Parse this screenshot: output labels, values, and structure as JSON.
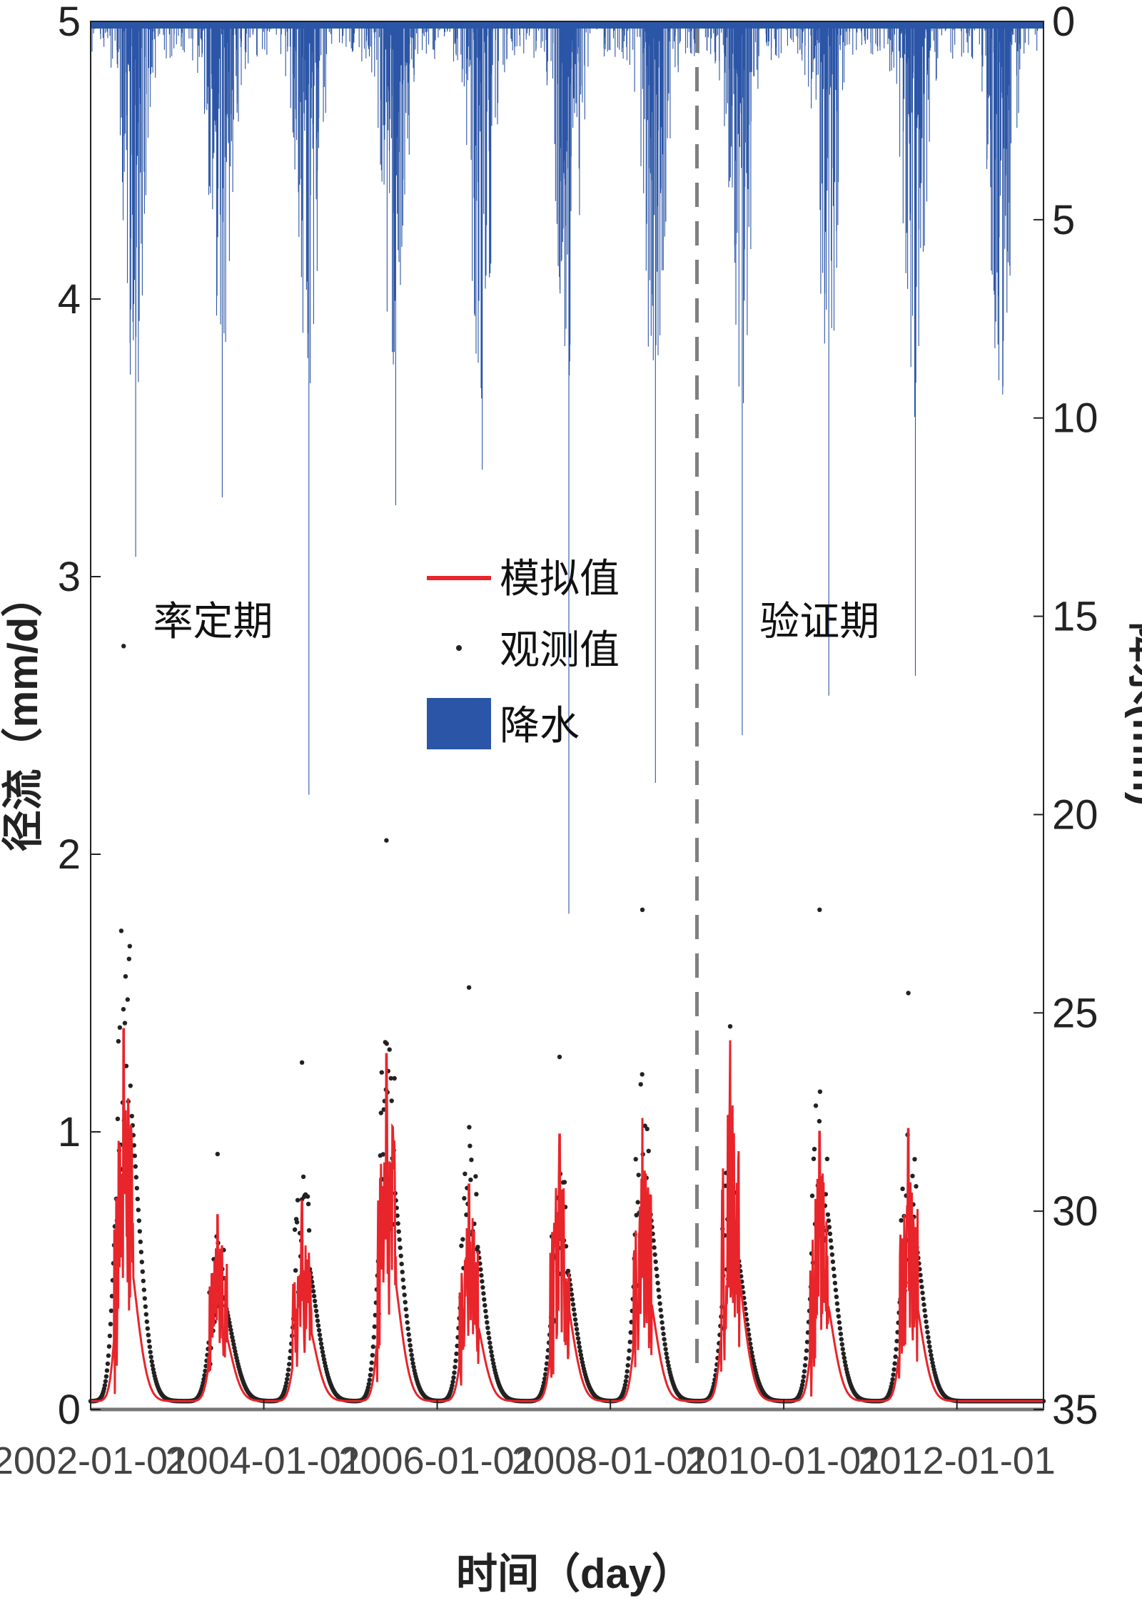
{
  "chart_data": {
    "type": "line",
    "xlabel": "时间（day）",
    "ylabel_left": "径流（mm/d）",
    "ylabel_right": "降水(mm)",
    "xlim": [
      "2002-01-01",
      "2012-12-31"
    ],
    "xticks": [
      "2002-01-01",
      "2004-01-01",
      "2006-01-01",
      "2008-01-01",
      "2010-01-01",
      "2012-01-01"
    ],
    "ylim_left": [
      0,
      5
    ],
    "yticks_left": [
      "0",
      "1",
      "2",
      "3",
      "4",
      "5"
    ],
    "ylim_right": [
      0,
      35
    ],
    "yticks_right": [
      "0",
      "5",
      "10",
      "15",
      "20",
      "25",
      "30",
      "35"
    ],
    "right_axis_inverted": true,
    "grid": false,
    "divider_date": "2008-12-31",
    "period_labels": {
      "calibration": "率定期",
      "validation": "验证期"
    },
    "legend": {
      "position": "center",
      "entries": [
        "模拟值",
        "观测值",
        "降水"
      ]
    },
    "colors": {
      "simulated": "#e8252b",
      "observed": "#222222",
      "precip": "#2b55a6",
      "divider": "#7f7f7f"
    },
    "annual_peaks": [
      {
        "date": "2002-05-20",
        "observed_max": 2.75,
        "simulated_max": 1.37
      },
      {
        "date": "2003-06-20",
        "observed_max": 0.92,
        "simulated_max": 0.7
      },
      {
        "date": "2004-06-10",
        "observed_max": 1.25,
        "simulated_max": 0.75
      },
      {
        "date": "2005-06-01",
        "observed_max": 2.05,
        "simulated_max": 1.28
      },
      {
        "date": "2006-05-15",
        "observed_max": 1.52,
        "simulated_max": 0.81
      },
      {
        "date": "2007-06-01",
        "observed_max": 1.27,
        "simulated_max": 0.99
      },
      {
        "date": "2008-05-15",
        "observed_max": 1.8,
        "simulated_max": 1.05
      },
      {
        "date": "2009-05-20",
        "observed_max": 1.38,
        "simulated_max": 1.33
      },
      {
        "date": "2010-06-01",
        "observed_max": 1.8,
        "simulated_max": 1.0
      },
      {
        "date": "2011-06-10",
        "observed_max": 1.5,
        "simulated_max": 1.01
      }
    ],
    "precip_annual_max": [
      {
        "year": 2002,
        "max_mm": 13.5
      },
      {
        "year": 2003,
        "max_mm": 12.0
      },
      {
        "year": 2004,
        "max_mm": 19.5
      },
      {
        "year": 2005,
        "max_mm": 12.2
      },
      {
        "year": 2006,
        "max_mm": 11.3
      },
      {
        "year": 2007,
        "max_mm": 22.5
      },
      {
        "year": 2008,
        "max_mm": 19.2
      },
      {
        "year": 2009,
        "max_mm": 18.0
      },
      {
        "year": 2010,
        "max_mm": 17.0
      },
      {
        "year": 2011,
        "max_mm": 16.5
      }
    ]
  }
}
